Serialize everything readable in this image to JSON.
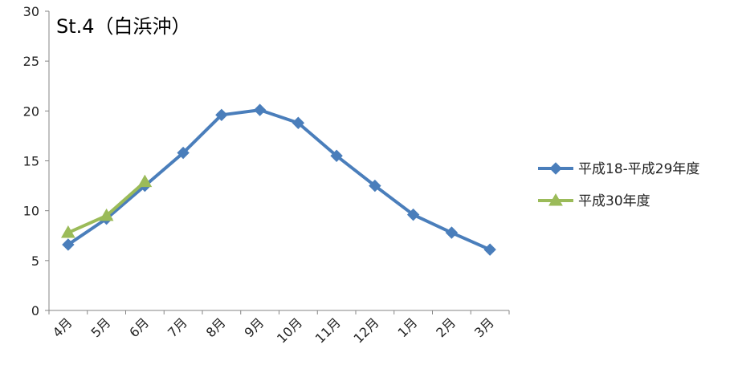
{
  "chart_data": {
    "type": "line",
    "title": "St.4（白浜沖）",
    "xlabel": "",
    "ylabel": "",
    "categories": [
      "4月",
      "5月",
      "6月",
      "7月",
      "8月",
      "9月",
      "10月",
      "11月",
      "12月",
      "1月",
      "2月",
      "3月"
    ],
    "ylim": [
      0,
      30
    ],
    "yticks": [
      0,
      5,
      10,
      15,
      20,
      25,
      30
    ],
    "grid": false,
    "legend_position": "right",
    "series": [
      {
        "name": "平成18-平成29年度",
        "values": [
          6.6,
          9.2,
          12.5,
          15.8,
          19.6,
          20.1,
          18.8,
          15.5,
          12.5,
          9.6,
          7.8,
          6.1
        ],
        "color": "#4a7ebb",
        "marker": "diamond"
      },
      {
        "name": "平成30年度",
        "values": [
          7.8,
          9.5,
          12.9,
          null,
          null,
          null,
          null,
          null,
          null,
          null,
          null,
          null
        ],
        "color": "#9bbb59",
        "marker": "triangle"
      }
    ]
  }
}
